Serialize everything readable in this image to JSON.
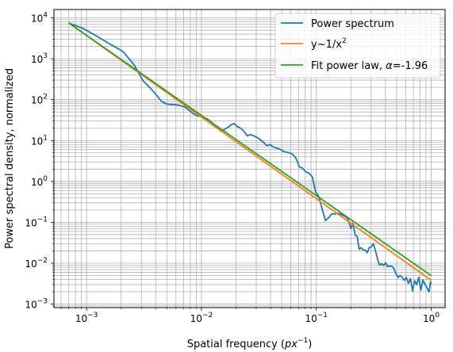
{
  "chart_data": {
    "type": "line",
    "xlabel": "Spatial frequency",
    "xlabel_unit": "px",
    "xlabel_unit_exp": "−1",
    "ylabel": "Power spectral density, normalized",
    "xscale": "log",
    "yscale": "log",
    "xlim": [
      0.00052,
      1.32
    ],
    "ylim": [
      0.00082,
      16000
    ],
    "grid": "major and minor",
    "legend_position": "top-right",
    "x_ticks": [
      {
        "base": "10",
        "exp": "−3",
        "value": 0.001
      },
      {
        "base": "10",
        "exp": "−2",
        "value": 0.01
      },
      {
        "base": "10",
        "exp": "−1",
        "value": 0.1
      },
      {
        "base": "10",
        "exp": "0",
        "value": 1
      }
    ],
    "y_ticks": [
      {
        "base": "10",
        "exp": "−3",
        "value": 0.001
      },
      {
        "base": "10",
        "exp": "−2",
        "value": 0.01
      },
      {
        "base": "10",
        "exp": "−1",
        "value": 0.1
      },
      {
        "base": "10",
        "exp": "0",
        "value": 1
      },
      {
        "base": "10",
        "exp": "1",
        "value": 10
      },
      {
        "base": "10",
        "exp": "2",
        "value": 100
      },
      {
        "base": "10",
        "exp": "3",
        "value": 1000
      },
      {
        "base": "10",
        "exp": "4",
        "value": 10000
      }
    ],
    "series": [
      {
        "name": "Power spectrum",
        "color": "#1f77b4",
        "x": [
          0.0007,
          0.00092,
          0.0012,
          0.00155,
          0.002,
          0.0021,
          0.0026,
          0.0031,
          0.0036,
          0.0041,
          0.0045,
          0.005,
          0.0055,
          0.006,
          0.0066,
          0.0072,
          0.0078,
          0.0085,
          0.0093,
          0.0102,
          0.0112,
          0.0123,
          0.0135,
          0.0147,
          0.016,
          0.017,
          0.018,
          0.0192,
          0.0205,
          0.0219,
          0.0234,
          0.025,
          0.0267,
          0.0285,
          0.0304,
          0.0325,
          0.0347,
          0.037,
          0.0395,
          0.0421,
          0.045,
          0.048,
          0.0512,
          0.0547,
          0.0584,
          0.0623,
          0.0665,
          0.071,
          0.0758,
          0.0809,
          0.0864,
          0.0922,
          0.0985,
          0.105,
          0.112,
          0.12,
          0.128,
          0.136,
          0.145,
          0.155,
          0.166,
          0.177,
          0.189,
          0.2,
          0.208,
          0.218,
          0.227,
          0.236,
          0.245,
          0.256,
          0.266,
          0.277,
          0.289,
          0.3,
          0.313,
          0.326,
          0.34,
          0.355,
          0.37,
          0.385,
          0.401,
          0.418,
          0.436,
          0.455,
          0.474,
          0.494,
          0.515,
          0.536,
          0.559,
          0.583,
          0.607,
          0.633,
          0.66,
          0.688,
          0.717,
          0.747,
          0.779,
          0.812,
          0.846,
          0.882,
          0.919,
          0.958,
          0.985,
          1.0
        ],
        "y": [
          7500,
          5600,
          3700,
          2400,
          1600,
          1450,
          700,
          290,
          190,
          125,
          90,
          78,
          76,
          75,
          71,
          66,
          55,
          45,
          40,
          38,
          34,
          28,
          21,
          17,
          19,
          21,
          24,
          26,
          22,
          20,
          17,
          13,
          14,
          13,
          12,
          10.5,
          9,
          7.5,
          8,
          7,
          6.5,
          6.2,
          5.5,
          5.2,
          5,
          4.6,
          3.7,
          2.3,
          2.1,
          1.7,
          1.6,
          1.3,
          0.55,
          0.43,
          0.22,
          0.11,
          0.13,
          0.16,
          0.16,
          0.165,
          0.155,
          0.14,
          0.12,
          0.07,
          0.095,
          0.048,
          0.045,
          0.022,
          0.024,
          0.021,
          0.021,
          0.018,
          0.024,
          0.025,
          0.03,
          0.021,
          0.013,
          0.009,
          0.0097,
          0.0088,
          0.0103,
          0.0083,
          0.0085,
          0.0085,
          0.0073,
          0.0055,
          0.0045,
          0.005,
          0.0045,
          0.0038,
          0.0045,
          0.0032,
          0.0042,
          0.0021,
          0.0037,
          0.003,
          0.0045,
          0.0022,
          0.0039,
          0.003,
          0.0025,
          0.002,
          0.0035,
          0.0031
        ]
      },
      {
        "name_prefix": "y~1/x",
        "name_sup": "2",
        "color": "#ff7f0e",
        "x": [
          0.0007,
          1.0
        ],
        "y": [
          7500,
          0.00383
        ]
      },
      {
        "name_prefix": "Fit power law, ",
        "name_symbol": "α",
        "name_suffix": "=-1.96",
        "color": "#2ca02c",
        "x": [
          0.0007,
          1.0
        ],
        "y": [
          7500,
          0.00496
        ]
      }
    ]
  }
}
